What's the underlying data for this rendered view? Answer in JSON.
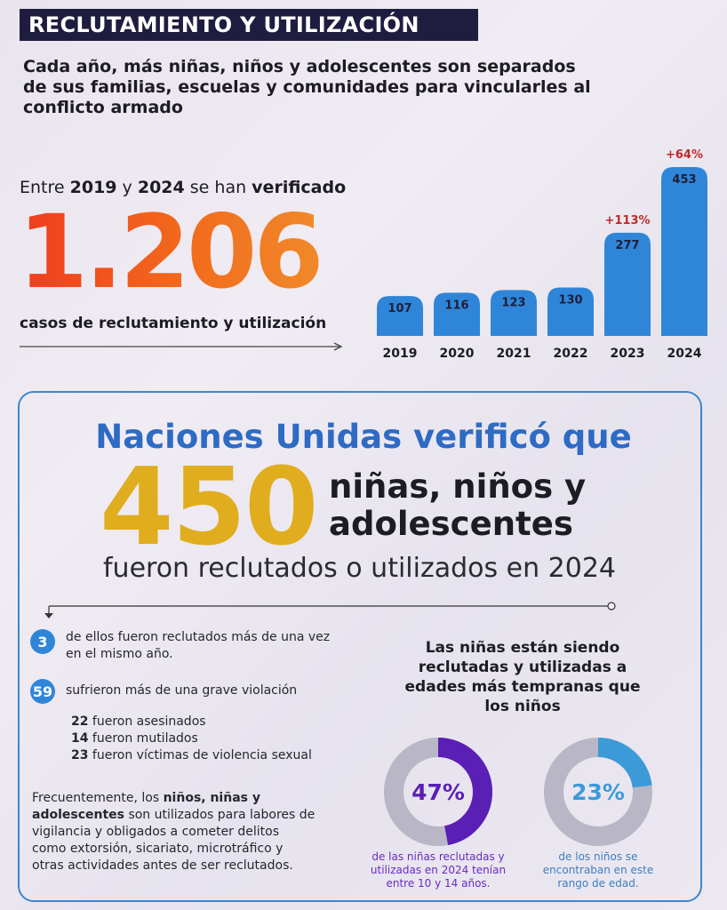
{
  "header": {
    "title": "RECLUTAMIENTO Y UTILIZACIÓN",
    "subtitle": "Cada año, más niñas, niños y adolescentes son separados de sus familias, escuelas y comunidades para vincularles al conflicto armado"
  },
  "summary": {
    "intro_1": "Entre ",
    "year_start": "2019",
    "intro_2": " y ",
    "year_end": "2024",
    "intro_3": " se han ",
    "intro_verb": "verificado",
    "total": "1.206",
    "total_label": "casos de reclutamiento y utilización"
  },
  "chart_data": {
    "type": "bar",
    "categories": [
      "2019",
      "2020",
      "2021",
      "2022",
      "2023",
      "2024"
    ],
    "values": [
      107,
      116,
      123,
      130,
      277,
      453
    ],
    "annotations": [
      {
        "category": "2023",
        "text": "+113%"
      },
      {
        "category": "2024",
        "text": "+64%"
      }
    ],
    "title": "",
    "xlabel": "",
    "ylabel": "",
    "grid": false,
    "bar_color": "#2f86d8",
    "annotation_color": "#c02a2a"
  },
  "un_section": {
    "headline": "Naciones Unidas verificó que",
    "count": "450",
    "subject_line1": "niñas, niños y",
    "subject_line2": "adolescentes",
    "detail": "fueron reclutados o utilizados en 2024"
  },
  "facts": [
    {
      "number": "3",
      "text": "de ellos fueron reclutados más de una vez en el mismo año."
    },
    {
      "number": "59",
      "text": "sufrieron más de una grave violación"
    }
  ],
  "violations": [
    {
      "count": "22",
      "text": " fueron asesinados"
    },
    {
      "count": "14",
      "text": " fueron mutilados"
    },
    {
      "count": "23",
      "text": " fueron víctimas de violencia sexual"
    }
  ],
  "paragraph": {
    "p1": "Frecuentemente, los ",
    "p2": "niños, niñas y adolescentes",
    "p3": " son utilizados para labores de vigilancia y obligados a cometer delitos como extorsión, sicariato, microtráfico y otras actividades antes de ser reclutados."
  },
  "girls_section": {
    "title": "Las niñas están siendo reclutadas y utilizadas a edades más tempranas que los niños",
    "girls": {
      "percent": 47,
      "label": "47%",
      "caption": "de las niñas reclutadas y utilizadas en 2024 tenían entre 10 y 14 años.",
      "color": "#5a1fb5",
      "caption_color": "#6a2bc4"
    },
    "boys": {
      "percent": 23,
      "label": "23%",
      "caption": "de los niños se encontraban en este rango de edad.",
      "color": "#3c9ad9",
      "caption_color": "#3c7ec0"
    },
    "track_color": "#b9b6c6"
  }
}
